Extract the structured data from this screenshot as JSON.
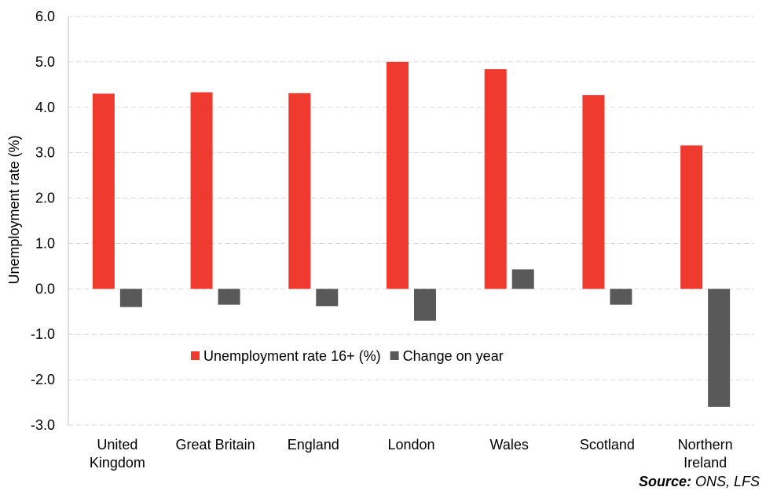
{
  "chart_data": {
    "type": "bar",
    "categories": [
      [
        "United",
        "Kingdom"
      ],
      [
        "Great Britain"
      ],
      [
        "England"
      ],
      [
        "London"
      ],
      [
        "Wales"
      ],
      [
        "Scotland"
      ],
      [
        "Northern",
        "Ireland"
      ]
    ],
    "series": [
      {
        "name": "Unemployment rate 16+ (%)",
        "color": "#ee3a2f",
        "values": [
          4.3,
          4.33,
          4.31,
          5.0,
          4.84,
          4.27,
          3.16
        ]
      },
      {
        "name": "Change on year",
        "color": "#595959",
        "values": [
          -0.4,
          -0.35,
          -0.38,
          -0.7,
          0.43,
          -0.35,
          -2.6
        ]
      }
    ],
    "ylabel": "Unemployment  rate (%)",
    "ylim": [
      -3.0,
      6.0
    ],
    "yticks": [
      "6.0",
      "5.0",
      "4.0",
      "3.0",
      "2.0",
      "1.0",
      "0.0",
      "-1.0",
      "-2.0",
      "-3.0"
    ],
    "ytick_values": [
      6,
      5,
      4,
      3,
      2,
      1,
      0,
      -1,
      -2,
      -3
    ],
    "grid": true,
    "legend_position": "inside-bottom-center"
  },
  "source": {
    "label": "Source:",
    "text": " ONS, LFS"
  }
}
